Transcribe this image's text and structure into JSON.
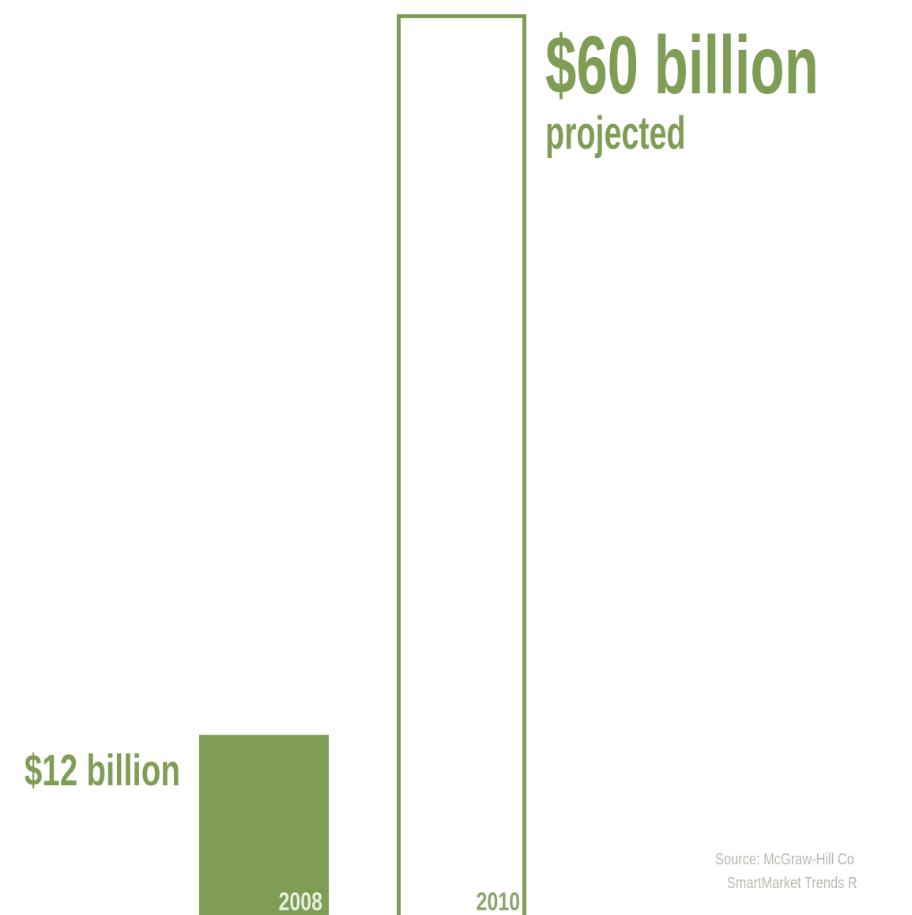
{
  "chart_data": {
    "type": "bar",
    "categories": [
      "2008",
      "2010"
    ],
    "values": [
      12,
      60
    ],
    "unit": "billion",
    "data_labels": [
      "$12 billion",
      "$60 billion"
    ],
    "annotation": "projected",
    "ylim": [
      0,
      60
    ],
    "grid": false,
    "legend": "none",
    "bar_styles": [
      "filled",
      "outlined"
    ]
  },
  "source": {
    "line1": "Source: McGraw-Hill Co",
    "line2": "SmartMarket Trends R"
  },
  "colors": {
    "accent": "#7f9d55",
    "tick_text_light": "#e8eedd",
    "tick_text_dark": "#8aa66a",
    "source_text": "#b9b9b3",
    "background": "#ffffff"
  }
}
